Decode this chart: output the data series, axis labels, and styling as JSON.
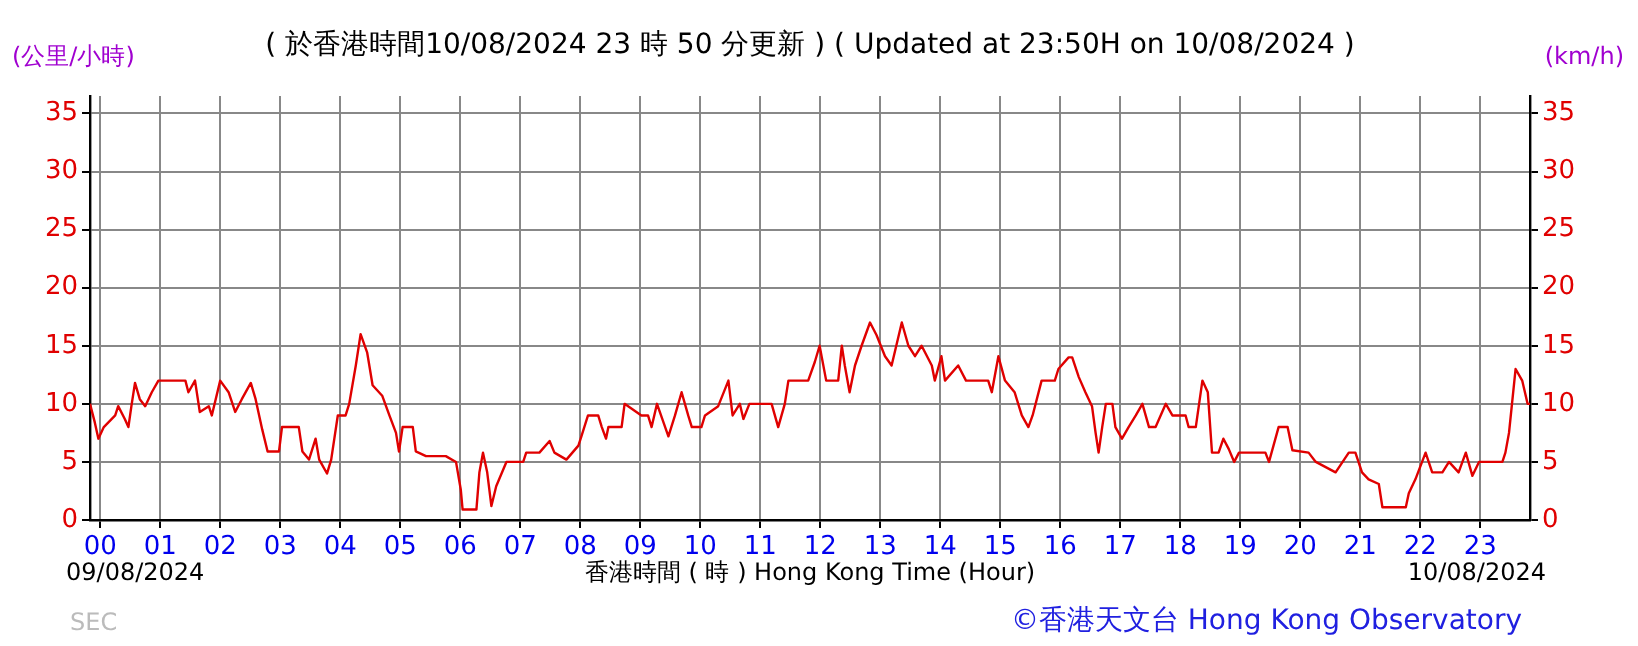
{
  "chart_data": {
    "type": "line",
    "title": "( 於香港時間10/08/2024 23 時 50 分更新 ) ( Updated at 23:50H on 10/08/2024 )",
    "xlabel": "香港時間 ( 時 ) Hong Kong Time (Hour)",
    "ylabel": "(公里/小時)",
    "y2label": "(km/h)",
    "annotations": [
      "09/08/2024",
      "10/08/2024",
      "SEC",
      "©香港天文台 Hong Kong Observatory"
    ],
    "xlim": [
      -0.17,
      23.83
    ],
    "xticks": [
      {
        "value": 0,
        "label": "00"
      },
      {
        "value": 1,
        "label": "01"
      },
      {
        "value": 2,
        "label": "02"
      },
      {
        "value": 3,
        "label": "03"
      },
      {
        "value": 4,
        "label": "04"
      },
      {
        "value": 5,
        "label": "05"
      },
      {
        "value": 6,
        "label": "06"
      },
      {
        "value": 7,
        "label": "07"
      },
      {
        "value": 8,
        "label": "08"
      },
      {
        "value": 9,
        "label": "09"
      },
      10,
      11,
      12,
      13,
      14,
      15,
      16,
      17,
      18,
      19,
      20,
      21,
      22,
      23
    ],
    "ylim": [
      0,
      36.5
    ],
    "yticks": [
      0,
      5,
      10,
      15,
      20,
      25,
      30,
      35
    ],
    "y2lim": [
      0,
      36.5
    ],
    "y2ticks": [
      0,
      5,
      10,
      15,
      20,
      25,
      30,
      35
    ],
    "grid": true,
    "marker": "none",
    "line_style": "solid",
    "legend": false,
    "series": [
      {
        "color": "#e00000",
        "x": [
          -0.17,
          -0.09,
          -0.03,
          0.06,
          0.25,
          0.3,
          0.41,
          0.47,
          0.52,
          0.58,
          0.66,
          0.75,
          0.86,
          0.97,
          1.42,
          1.47,
          1.58,
          1.66,
          1.81,
          1.86,
          2.0,
          2.14,
          2.25,
          2.36,
          2.51,
          2.59,
          2.7,
          2.79,
          2.98,
          3.03,
          3.31,
          3.37,
          3.48,
          3.59,
          3.65,
          3.78,
          3.85,
          3.96,
          4.09,
          4.15,
          4.26,
          4.34,
          4.45,
          4.54,
          4.7,
          4.82,
          4.93,
          4.98,
          5.04,
          5.21,
          5.26,
          5.43,
          5.76,
          5.93,
          6.01,
          6.04,
          6.27,
          6.32,
          6.38,
          6.45,
          6.52,
          6.6,
          6.77,
          7.05,
          7.1,
          7.32,
          7.49,
          7.57,
          7.77,
          7.97,
          8.02,
          8.13,
          8.3,
          8.36,
          8.43,
          8.47,
          8.69,
          8.74,
          9.02,
          9.13,
          9.19,
          9.28,
          9.47,
          9.58,
          9.69,
          9.8,
          9.86,
          10.02,
          10.08,
          10.3,
          10.47,
          10.54,
          10.66,
          10.72,
          10.82,
          11.19,
          11.3,
          11.41,
          11.47,
          11.8,
          11.91,
          11.99,
          12.1,
          12.3,
          12.36,
          12.41,
          12.49,
          12.58,
          12.69,
          12.83,
          12.94,
          13.08,
          13.19,
          13.36,
          13.47,
          13.58,
          13.69,
          13.86,
          13.91,
          14.02,
          14.08,
          14.3,
          14.43,
          14.8,
          14.86,
          14.97,
          15.08,
          15.24,
          15.36,
          15.47,
          15.54,
          15.69,
          15.91,
          15.97,
          16.14,
          16.2,
          16.31,
          16.42,
          16.53,
          16.59,
          16.64,
          16.7,
          16.76,
          16.87,
          16.92,
          17.03,
          17.14,
          17.26,
          17.37,
          17.48,
          17.59,
          17.76,
          17.87,
          18.09,
          18.14,
          18.26,
          18.37,
          18.46,
          18.53,
          18.64,
          18.72,
          18.81,
          18.9,
          18.98,
          19.42,
          19.48,
          19.64,
          19.79,
          19.87,
          20.14,
          20.26,
          20.59,
          20.81,
          20.92,
          21.03,
          21.14,
          21.31,
          21.37,
          21.76,
          21.81,
          21.92,
          22.09,
          22.2,
          22.37,
          22.48,
          22.64,
          22.76,
          22.87,
          22.98,
          23.37,
          23.42,
          23.48,
          23.59,
          23.7,
          23.79,
          23.83
        ],
        "values": [
          10,
          8.4,
          7,
          8,
          9,
          9.8,
          8.7,
          8,
          9.8,
          11.8,
          10.4,
          9.8,
          11,
          12,
          12,
          11,
          12,
          9.3,
          9.8,
          9,
          12,
          11,
          9.3,
          10.4,
          11.8,
          10.4,
          7.8,
          5.9,
          5.9,
          8,
          8,
          5.9,
          5.2,
          7,
          5.2,
          4,
          5.2,
          9,
          9,
          10,
          13.3,
          16,
          14.4,
          11.6,
          10.7,
          9,
          7.5,
          5.9,
          8,
          8,
          5.9,
          5.5,
          5.5,
          5,
          2.6,
          0.9,
          0.9,
          4.1,
          5.8,
          4.1,
          1.2,
          2.9,
          5,
          5,
          5.8,
          5.8,
          6.8,
          5.8,
          5.2,
          6.4,
          7.2,
          9,
          9,
          8,
          7,
          8,
          8,
          10,
          9,
          9,
          8,
          10,
          7.2,
          9,
          11,
          9,
          8,
          8,
          9,
          9.8,
          12,
          9,
          10,
          8.7,
          10,
          10,
          8,
          10,
          12,
          12,
          13.6,
          15,
          12,
          12,
          15,
          13.3,
          11,
          13.3,
          15,
          17,
          15.9,
          14.1,
          13.3,
          17,
          15,
          14.1,
          15,
          13.3,
          12,
          14.1,
          12,
          13.3,
          12,
          12,
          11,
          14.1,
          12,
          11,
          9,
          8,
          9,
          12,
          12,
          13,
          14,
          14,
          12.3,
          11,
          9.8,
          7.5,
          5.8,
          8,
          10,
          10,
          8,
          7,
          8,
          9,
          10,
          8,
          8,
          10,
          9,
          9,
          8,
          8,
          12,
          11,
          5.8,
          5.8,
          7,
          6.1,
          5,
          5.8,
          5.8,
          5,
          8,
          8,
          6,
          5.8,
          5,
          4.1,
          5.8,
          5.8,
          4.1,
          3.5,
          3.1,
          1.1,
          1.1,
          2.3,
          3.5,
          5.8,
          4.1,
          4.1,
          5,
          4.1,
          5.8,
          3.8,
          5,
          5,
          5.8,
          7.5,
          13,
          12,
          10,
          10
        ]
      }
    ]
  }
}
